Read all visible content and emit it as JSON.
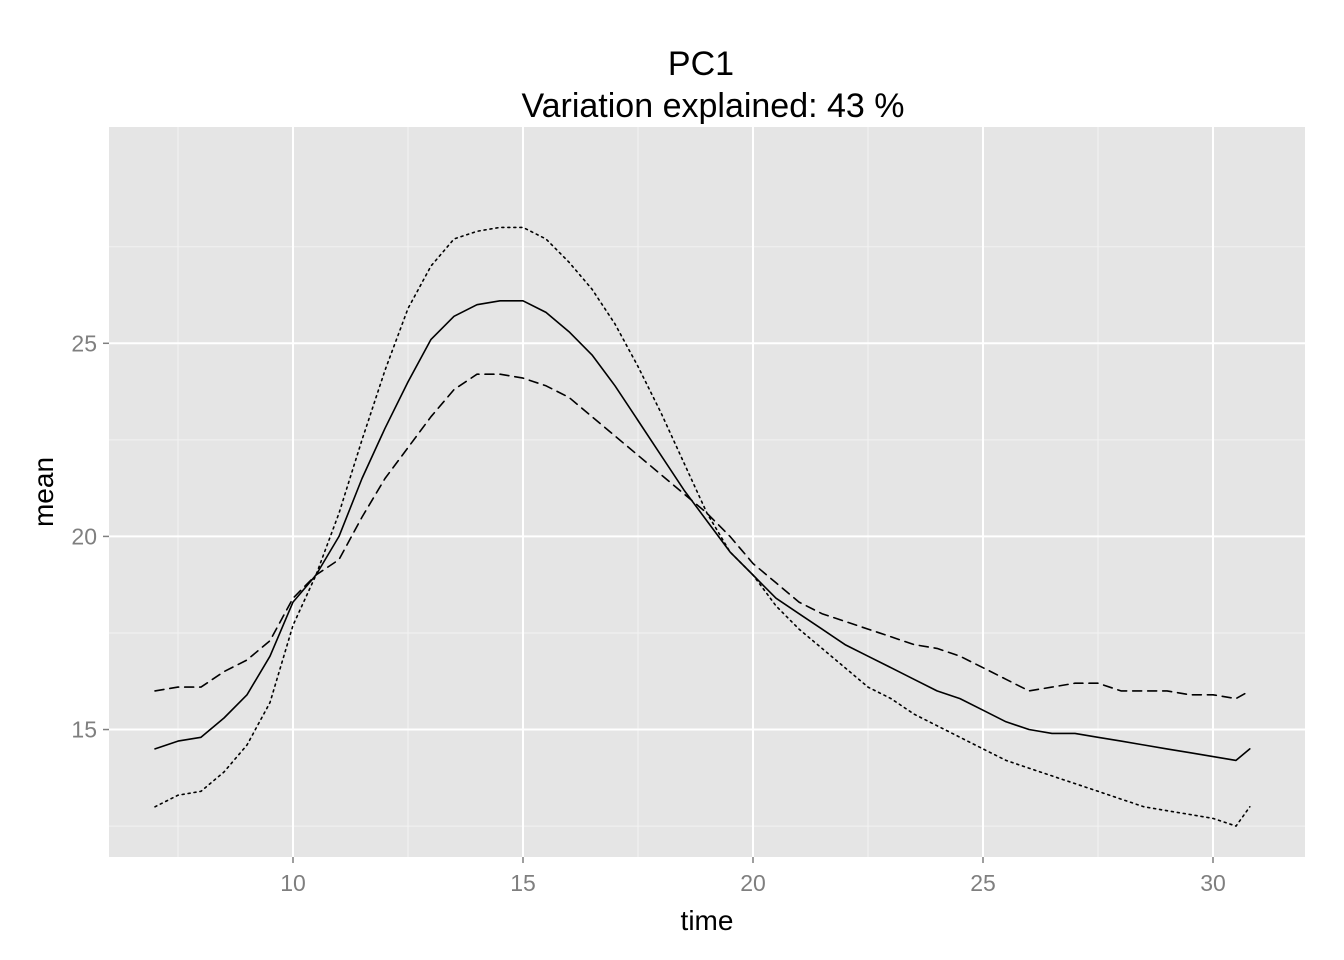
{
  "chart_data": {
    "type": "line",
    "title": "PC1",
    "subtitle": "Variation explained: 43 %",
    "xlabel": "time",
    "ylabel": "mean",
    "xlim": [
      6.0,
      32.0
    ],
    "ylim": [
      11.7,
      30.6
    ],
    "x_ticks": [
      10,
      15,
      20,
      25,
      30
    ],
    "y_ticks": [
      15,
      20,
      25
    ],
    "grid": true,
    "background": "#e5e5e5",
    "grid_major_color": "#ffffff",
    "grid_minor_color": "#f2f2f2",
    "line_color": "#000000",
    "series": [
      {
        "style": "dashed",
        "x": [
          7.0,
          7.5,
          8.0,
          8.5,
          9.0,
          9.5,
          10.0,
          10.5,
          11.0,
          11.5,
          12.0,
          12.5,
          13.0,
          13.5,
          14.0,
          14.5,
          15.0,
          15.5,
          16.0,
          16.5,
          17.0,
          17.5,
          18.0,
          18.5,
          19.0,
          19.5,
          20.0,
          20.5,
          21.0,
          21.5,
          22.0,
          22.5,
          23.0,
          23.5,
          24.0,
          24.5,
          25.0,
          25.5,
          26.0,
          26.5,
          27.0,
          27.5,
          28.0,
          28.5,
          29.0,
          29.5,
          30.0,
          30.5,
          30.8
        ],
        "values": [
          16.0,
          16.1,
          16.1,
          16.5,
          16.8,
          17.3,
          18.4,
          19.0,
          19.4,
          20.5,
          21.5,
          22.3,
          23.1,
          23.8,
          24.2,
          24.2,
          24.1,
          23.9,
          23.6,
          23.1,
          22.6,
          22.1,
          21.6,
          21.1,
          20.6,
          20.0,
          19.3,
          18.8,
          18.3,
          18.0,
          17.8,
          17.6,
          17.4,
          17.2,
          17.1,
          16.9,
          16.6,
          16.3,
          16.0,
          16.1,
          16.2,
          16.2,
          16.0,
          16.0,
          16.0,
          15.9,
          15.9,
          15.8,
          16.0
        ]
      },
      {
        "style": "solid",
        "x": [
          7.0,
          7.5,
          8.0,
          8.5,
          9.0,
          9.5,
          10.0,
          10.5,
          11.0,
          11.5,
          12.0,
          12.5,
          13.0,
          13.5,
          14.0,
          14.5,
          15.0,
          15.5,
          16.0,
          16.5,
          17.0,
          17.5,
          18.0,
          18.5,
          19.0,
          19.5,
          20.0,
          20.5,
          21.0,
          21.5,
          22.0,
          22.5,
          23.0,
          23.5,
          24.0,
          24.5,
          25.0,
          25.5,
          26.0,
          26.5,
          27.0,
          27.5,
          28.0,
          28.5,
          29.0,
          29.5,
          30.0,
          30.5,
          30.8
        ],
        "values": [
          14.5,
          14.7,
          14.8,
          15.3,
          15.9,
          16.9,
          18.3,
          19.0,
          20.0,
          21.5,
          22.8,
          24.0,
          25.1,
          25.7,
          26.0,
          26.1,
          26.1,
          25.8,
          25.3,
          24.7,
          23.9,
          23.0,
          22.1,
          21.2,
          20.4,
          19.6,
          19.0,
          18.4,
          18.0,
          17.6,
          17.2,
          16.9,
          16.6,
          16.3,
          16.0,
          15.8,
          15.5,
          15.2,
          15.0,
          14.9,
          14.9,
          14.8,
          14.7,
          14.6,
          14.5,
          14.4,
          14.3,
          14.2,
          14.5
        ]
      },
      {
        "style": "dotted",
        "x": [
          7.0,
          7.5,
          8.0,
          8.5,
          9.0,
          9.5,
          10.0,
          10.5,
          11.0,
          11.5,
          12.0,
          12.5,
          13.0,
          13.5,
          14.0,
          14.5,
          15.0,
          15.5,
          16.0,
          16.5,
          17.0,
          17.5,
          18.0,
          18.5,
          19.0,
          19.5,
          20.0,
          20.5,
          21.0,
          21.5,
          22.0,
          22.5,
          23.0,
          23.5,
          24.0,
          24.5,
          25.0,
          25.5,
          26.0,
          26.5,
          27.0,
          27.5,
          28.0,
          28.5,
          29.0,
          29.5,
          30.0,
          30.5,
          30.8
        ],
        "values": [
          13.0,
          13.3,
          13.4,
          13.9,
          14.6,
          15.7,
          17.7,
          19.0,
          20.6,
          22.5,
          24.3,
          25.9,
          27.0,
          27.7,
          27.9,
          28.0,
          28.0,
          27.7,
          27.1,
          26.4,
          25.5,
          24.4,
          23.2,
          21.9,
          20.6,
          19.6,
          19.0,
          18.2,
          17.6,
          17.1,
          16.6,
          16.1,
          15.8,
          15.4,
          15.1,
          14.8,
          14.5,
          14.2,
          14.0,
          13.8,
          13.6,
          13.4,
          13.2,
          13.0,
          12.9,
          12.8,
          12.7,
          12.5,
          13.0
        ]
      }
    ]
  }
}
